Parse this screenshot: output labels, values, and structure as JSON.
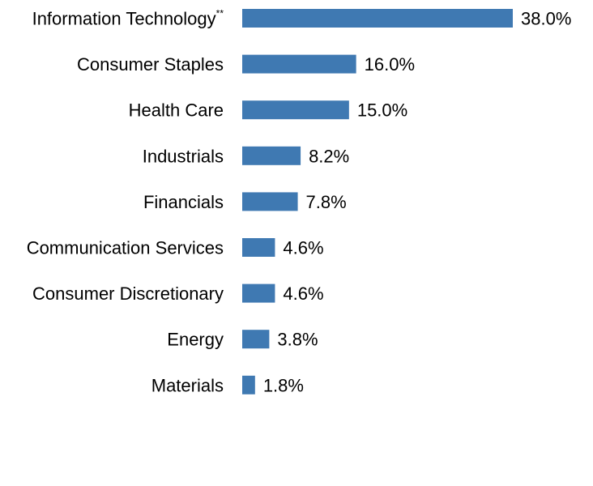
{
  "chart_data": {
    "type": "bar",
    "orientation": "horizontal",
    "categories": [
      "Information Technology",
      "Consumer Staples",
      "Health Care",
      "Industrials",
      "Financials",
      "Communication Services",
      "Consumer Discretionary",
      "Energy",
      "Materials"
    ],
    "category_superscripts": [
      "**",
      "",
      "",
      "",
      "",
      "",
      "",
      "",
      ""
    ],
    "values": [
      38.0,
      16.0,
      15.0,
      8.2,
      7.8,
      4.6,
      4.6,
      3.8,
      1.8
    ],
    "value_labels": [
      "38.0%",
      "16.0%",
      "15.0%",
      "8.2%",
      "7.8%",
      "4.6%",
      "4.6%",
      "3.8%",
      "1.8%"
    ],
    "unit": "%",
    "xlim": [
      0,
      38.0
    ],
    "grid": false,
    "bar_color": "#3f79b2"
  }
}
